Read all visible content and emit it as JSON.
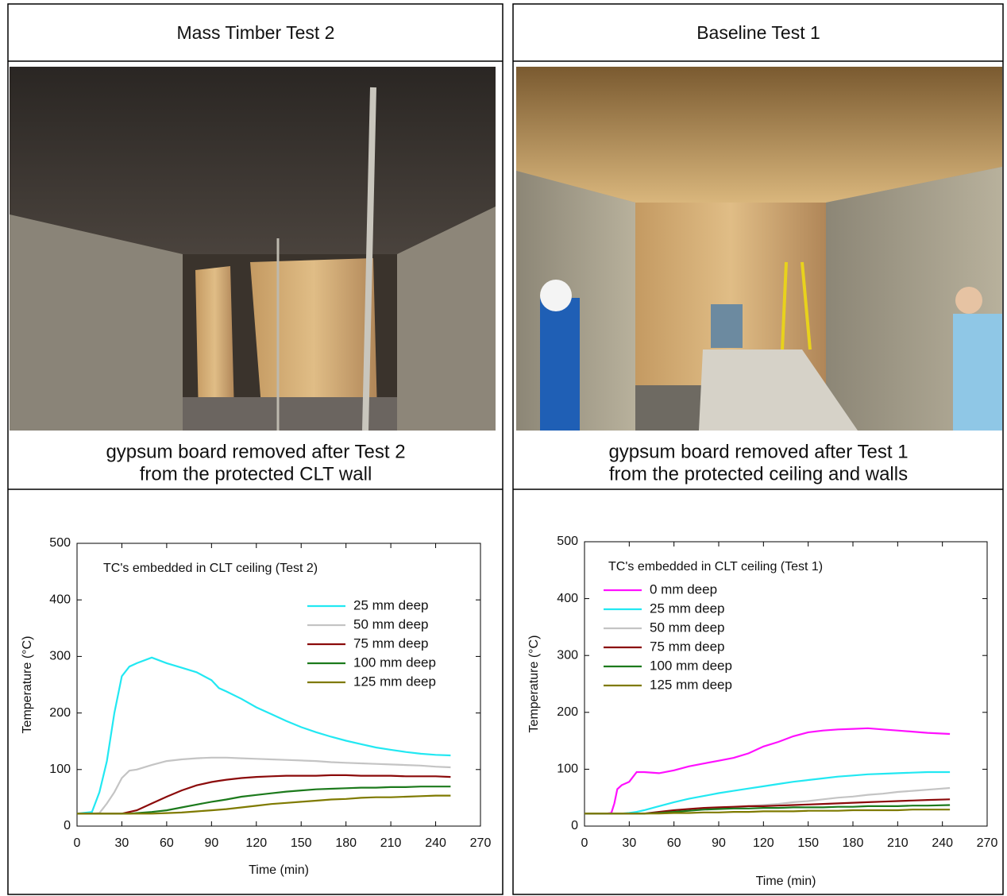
{
  "table": {
    "headers": [
      "Mass Timber Test 2",
      "Baseline Test 1"
    ],
    "captions": [
      [
        "gypsum board removed after Test 2",
        "from the protected CLT wall"
      ],
      [
        "gypsum board removed after Test 1",
        "from the protected ceiling and walls"
      ]
    ]
  },
  "chart_data": [
    {
      "type": "line",
      "annotation": "TC's embedded in CLT ceiling (Test 2)",
      "x_label": "Time (min)",
      "y_label": "Temperature (°C)",
      "legend": "upper right",
      "xlim": [
        0,
        270
      ],
      "ylim": [
        0,
        500
      ],
      "xticks": [
        0,
        30,
        60,
        90,
        120,
        150,
        180,
        210,
        240,
        270
      ],
      "yticks": [
        0,
        100,
        200,
        300,
        400,
        500
      ],
      "x": [
        0,
        10,
        15,
        20,
        25,
        30,
        35,
        40,
        50,
        60,
        70,
        80,
        90,
        95,
        100,
        110,
        120,
        130,
        140,
        150,
        160,
        170,
        180,
        190,
        200,
        210,
        220,
        230,
        240,
        250
      ],
      "series": [
        {
          "name": "25 mm deep",
          "color": "#22e8f2",
          "values": [
            22,
            25,
            60,
            115,
            200,
            265,
            282,
            288,
            298,
            288,
            280,
            272,
            258,
            244,
            238,
            225,
            210,
            198,
            186,
            175,
            166,
            158,
            151,
            145,
            139,
            135,
            131,
            128,
            126,
            125
          ]
        },
        {
          "name": "50 mm deep",
          "color": "#c4c4c4",
          "values": [
            22,
            22,
            23,
            40,
            60,
            85,
            98,
            100,
            108,
            115,
            118,
            120,
            121,
            121,
            121,
            120,
            119,
            118,
            117,
            116,
            115,
            113,
            112,
            111,
            110,
            109,
            108,
            107,
            105,
            104
          ]
        },
        {
          "name": "75 mm deep",
          "color": "#8b0a0a",
          "values": [
            22,
            22,
            22,
            22,
            22,
            22,
            25,
            28,
            40,
            52,
            63,
            72,
            78,
            80,
            82,
            85,
            87,
            88,
            89,
            89,
            89,
            90,
            90,
            89,
            89,
            89,
            88,
            88,
            88,
            87
          ]
        },
        {
          "name": "100 mm deep",
          "color": "#1c7a1c",
          "values": [
            22,
            22,
            22,
            22,
            22,
            22,
            22,
            23,
            25,
            28,
            33,
            38,
            43,
            45,
            47,
            52,
            55,
            58,
            61,
            63,
            65,
            66,
            67,
            68,
            68,
            69,
            69,
            70,
            70,
            70
          ]
        },
        {
          "name": "125 mm deep",
          "color": "#7f7a00",
          "values": [
            22,
            22,
            22,
            22,
            22,
            22,
            22,
            22,
            22,
            23,
            24,
            26,
            28,
            29,
            30,
            33,
            36,
            39,
            41,
            43,
            45,
            47,
            48,
            50,
            51,
            51,
            52,
            53,
            54,
            54
          ]
        }
      ]
    },
    {
      "type": "line",
      "annotation": "TC's embedded in CLT ceiling (Test 1)",
      "x_label": "Time (min)",
      "y_label": "Temperature (°C)",
      "legend": "upper left",
      "xlim": [
        0,
        270
      ],
      "ylim": [
        0,
        500
      ],
      "xticks": [
        0,
        30,
        60,
        90,
        120,
        150,
        180,
        210,
        240,
        270
      ],
      "yticks": [
        0,
        100,
        200,
        300,
        400,
        500
      ],
      "x": [
        0,
        10,
        15,
        18,
        20,
        22,
        25,
        30,
        35,
        40,
        50,
        60,
        70,
        80,
        90,
        100,
        110,
        120,
        130,
        140,
        150,
        160,
        170,
        180,
        190,
        200,
        210,
        220,
        230,
        245
      ],
      "series": [
        {
          "name": "0 mm deep",
          "color": "#ff10ff",
          "values": [
            22,
            22,
            22,
            23,
            40,
            65,
            72,
            78,
            95,
            95,
            93,
            98,
            105,
            110,
            115,
            120,
            128,
            140,
            148,
            158,
            165,
            168,
            170,
            171,
            172,
            170,
            168,
            166,
            164,
            162
          ]
        },
        {
          "name": "25 mm deep",
          "color": "#22e8f2",
          "values": [
            22,
            22,
            22,
            22,
            22,
            22,
            22,
            23,
            25,
            28,
            35,
            42,
            48,
            53,
            58,
            62,
            66,
            70,
            74,
            78,
            81,
            84,
            87,
            89,
            91,
            92,
            93,
            94,
            95,
            95
          ]
        },
        {
          "name": "50 mm deep",
          "color": "#c4c4c4",
          "values": [
            22,
            22,
            22,
            22,
            22,
            22,
            22,
            22,
            22,
            22,
            23,
            25,
            27,
            29,
            31,
            33,
            35,
            37,
            39,
            42,
            44,
            47,
            50,
            52,
            55,
            57,
            60,
            62,
            64,
            67
          ]
        },
        {
          "name": "75 mm deep",
          "color": "#8b0a0a",
          "values": [
            22,
            22,
            22,
            22,
            22,
            22,
            22,
            22,
            22,
            22,
            25,
            28,
            30,
            32,
            33,
            34,
            35,
            35,
            36,
            37,
            38,
            39,
            40,
            41,
            42,
            43,
            44,
            45,
            46,
            47
          ]
        },
        {
          "name": "100 mm deep",
          "color": "#1c7a1c",
          "values": [
            22,
            22,
            22,
            22,
            22,
            22,
            22,
            22,
            22,
            22,
            23,
            25,
            27,
            29,
            30,
            31,
            31,
            32,
            32,
            33,
            33,
            33,
            34,
            34,
            35,
            35,
            35,
            36,
            36,
            37
          ]
        },
        {
          "name": "125 mm deep",
          "color": "#7f7a00",
          "values": [
            22,
            22,
            22,
            22,
            22,
            22,
            22,
            22,
            22,
            22,
            22,
            23,
            23,
            24,
            24,
            25,
            25,
            26,
            26,
            26,
            27,
            27,
            27,
            28,
            28,
            28,
            28,
            29,
            29,
            29
          ]
        }
      ]
    }
  ]
}
